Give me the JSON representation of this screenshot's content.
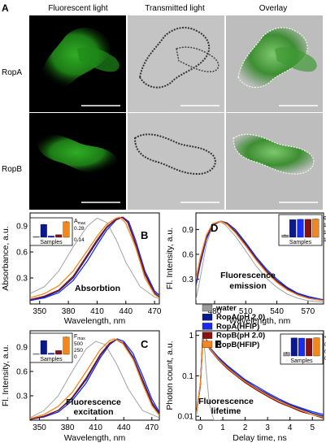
{
  "panel_a": {
    "letter": "A",
    "col_headers": [
      "Fluorescent light",
      "Transmitted light",
      "Overlay"
    ],
    "row_labels": [
      "RopA",
      "RopB"
    ]
  },
  "legend": {
    "entries": [
      {
        "label": "water",
        "color": "#9a9a9a"
      },
      {
        "label": "RopA(pH 2.0)",
        "color": "#0a1a8c"
      },
      {
        "label": "RopA(HFIP)",
        "color": "#1a2cf0"
      },
      {
        "label": "RopB(pH 2.0)",
        "color": "#8b1010"
      },
      {
        "label": "RopB(HFIP)",
        "color": "#f0881e"
      }
    ]
  },
  "chart_data": [
    {
      "panel": "B",
      "type": "line",
      "ylabel": "Absorbance, a.u.",
      "xlabel": "Wavelength, nm",
      "annotation": "Absorbtion",
      "xlim": [
        340,
        475
      ],
      "ylim": [
        0,
        1.05
      ],
      "xticks": [
        350,
        380,
        410,
        440,
        470
      ],
      "yticks": [
        0.3,
        0.6,
        0.9
      ],
      "series": [
        {
          "color": "#9a9a9a",
          "x": [
            340,
            355,
            370,
            385,
            400,
            410,
            420,
            430,
            440,
            455,
            470,
            475
          ],
          "y": [
            0.12,
            0.2,
            0.38,
            0.66,
            0.9,
            0.99,
            0.94,
            0.74,
            0.48,
            0.2,
            0.08,
            0.06
          ]
        },
        {
          "color": "#0a1a8c",
          "x": [
            340,
            355,
            370,
            385,
            400,
            410,
            420,
            430,
            436,
            442,
            450,
            460,
            470,
            475
          ],
          "y": [
            0.05,
            0.08,
            0.15,
            0.3,
            0.55,
            0.72,
            0.88,
            0.98,
            1.0,
            0.95,
            0.7,
            0.35,
            0.13,
            0.08
          ]
        },
        {
          "color": "#1a2cf0",
          "x": [
            340,
            355,
            370,
            385,
            400,
            410,
            420,
            430,
            437,
            443,
            450,
            460,
            470,
            475
          ],
          "y": [
            0.04,
            0.07,
            0.13,
            0.27,
            0.5,
            0.68,
            0.85,
            0.97,
            1.0,
            0.95,
            0.74,
            0.38,
            0.15,
            0.1
          ]
        },
        {
          "color": "#8b1010",
          "x": [
            340,
            355,
            370,
            385,
            400,
            410,
            420,
            430,
            436,
            442,
            450,
            460,
            470,
            475
          ],
          "y": [
            0.05,
            0.09,
            0.16,
            0.32,
            0.57,
            0.74,
            0.89,
            0.98,
            1.0,
            0.94,
            0.69,
            0.34,
            0.12,
            0.08
          ]
        },
        {
          "color": "#f0881e",
          "x": [
            340,
            355,
            370,
            385,
            400,
            410,
            420,
            430,
            434,
            440,
            450,
            460,
            470,
            475
          ],
          "y": [
            0.07,
            0.12,
            0.21,
            0.38,
            0.62,
            0.78,
            0.92,
            0.99,
            1.0,
            0.93,
            0.66,
            0.3,
            0.11,
            0.07
          ]
        }
      ],
      "inset": {
        "title": "A",
        "title_sub": "max",
        "yticks": [
          "0.28",
          "0.14"
        ],
        "ylim": [
          0,
          0.33
        ],
        "xlabel": "Samples",
        "bars": [
          0.015,
          0.25,
          0.025,
          0.05,
          0.3
        ],
        "errors": [
          0.003,
          0.01,
          0.004,
          0.005,
          0.012
        ]
      }
    },
    {
      "panel": "C",
      "type": "line",
      "ylabel": "Fl. Intensity, a.u.",
      "xlabel": "Wavelength, nm",
      "annotation": [
        "Fluorescence",
        "excitation"
      ],
      "xlim": [
        340,
        478
      ],
      "ylim": [
        0,
        1.1
      ],
      "xticks": [
        350,
        380,
        410,
        440,
        470
      ],
      "yticks": [
        0.3,
        0.6,
        0.9
      ],
      "series": [
        {
          "color": "#9a9a9a",
          "x": [
            340,
            355,
            370,
            385,
            400,
            410,
            420,
            432,
            445,
            460,
            478
          ],
          "y": [
            0.03,
            0.12,
            0.3,
            0.6,
            0.88,
            0.97,
            0.93,
            0.7,
            0.38,
            0.12,
            0.03
          ]
        },
        {
          "color": "#0a1a8c",
          "x": [
            340,
            355,
            370,
            385,
            400,
            415,
            425,
            432,
            440,
            450,
            460,
            470,
            478
          ],
          "y": [
            0.01,
            0.05,
            0.12,
            0.27,
            0.5,
            0.8,
            0.94,
            0.99,
            0.95,
            0.78,
            0.5,
            0.22,
            0.08
          ]
        },
        {
          "color": "#1a2cf0",
          "x": [
            340,
            355,
            370,
            385,
            400,
            415,
            425,
            433,
            440,
            450,
            460,
            470,
            478
          ],
          "y": [
            0.01,
            0.04,
            0.1,
            0.24,
            0.46,
            0.77,
            0.93,
            1.0,
            0.97,
            0.82,
            0.55,
            0.26,
            0.1
          ]
        },
        {
          "color": "#8b1010",
          "x": [
            340,
            355,
            370,
            385,
            400,
            415,
            425,
            432,
            440,
            450,
            460,
            470,
            478
          ],
          "y": [
            0.01,
            0.05,
            0.12,
            0.28,
            0.52,
            0.81,
            0.95,
            0.99,
            0.94,
            0.76,
            0.48,
            0.2,
            0.07
          ]
        },
        {
          "color": "#f0881e",
          "x": [
            340,
            355,
            370,
            385,
            400,
            415,
            425,
            430,
            438,
            450,
            460,
            470,
            478
          ],
          "y": [
            0.02,
            0.07,
            0.17,
            0.34,
            0.6,
            0.87,
            0.98,
            1.0,
            0.96,
            0.75,
            0.45,
            0.18,
            0.06
          ]
        }
      ],
      "inset": {
        "title": "F",
        "title_sub": "max",
        "yticks": [
          "500",
          "250",
          "0"
        ],
        "ylim": [
          0,
          650
        ],
        "xlabel": "Samples",
        "bars": [
          15,
          480,
          40,
          130,
          600
        ],
        "errors": [
          3,
          12,
          5,
          8,
          15
        ]
      }
    },
    {
      "panel": "D",
      "type": "line",
      "ylabel": "Fl. Intensity, a.u.",
      "xlabel": "Wavelength, nm",
      "annotation": [
        "Fluorescence",
        "emission"
      ],
      "xlim": [
        462,
        585
      ],
      "ylim": [
        0,
        1.1
      ],
      "xticks": [
        480,
        510,
        540,
        570
      ],
      "yticks": [
        0.3,
        0.6,
        0.9
      ],
      "series": [
        {
          "color": "#9a9a9a",
          "x": [
            462,
            466,
            472,
            478,
            484,
            490,
            500,
            510,
            520,
            530,
            540,
            550,
            560,
            570,
            585
          ],
          "y": [
            0.05,
            0.3,
            0.72,
            0.95,
            1.0,
            0.96,
            0.82,
            0.64,
            0.46,
            0.31,
            0.2,
            0.12,
            0.07,
            0.04,
            0.02
          ]
        },
        {
          "color": "#0a1a8c",
          "x": [
            462,
            466,
            472,
            478,
            486,
            492,
            500,
            510,
            520,
            530,
            540,
            550,
            560,
            570,
            585
          ],
          "y": [
            0.25,
            0.5,
            0.8,
            0.96,
            1.0,
            0.97,
            0.88,
            0.72,
            0.55,
            0.4,
            0.28,
            0.19,
            0.12,
            0.08,
            0.04
          ]
        },
        {
          "color": "#1a2cf0",
          "x": [
            462,
            466,
            472,
            478,
            486,
            492,
            500,
            510,
            520,
            530,
            540,
            550,
            560,
            570,
            585
          ],
          "y": [
            0.22,
            0.47,
            0.78,
            0.95,
            1.0,
            0.98,
            0.9,
            0.74,
            0.57,
            0.42,
            0.3,
            0.2,
            0.13,
            0.09,
            0.05
          ]
        },
        {
          "color": "#8b1010",
          "x": [
            462,
            466,
            472,
            478,
            486,
            492,
            500,
            510,
            520,
            530,
            540,
            550,
            560,
            570,
            585
          ],
          "y": [
            0.27,
            0.52,
            0.81,
            0.96,
            1.0,
            0.97,
            0.87,
            0.71,
            0.54,
            0.39,
            0.27,
            0.18,
            0.11,
            0.07,
            0.04
          ]
        },
        {
          "color": "#f0881e",
          "x": [
            462,
            466,
            472,
            478,
            486,
            492,
            500,
            510,
            520,
            530,
            540,
            550,
            560,
            570,
            585
          ],
          "y": [
            0.3,
            0.55,
            0.83,
            0.97,
            1.0,
            0.96,
            0.86,
            0.7,
            0.53,
            0.38,
            0.26,
            0.17,
            0.11,
            0.07,
            0.04
          ]
        }
      ],
      "inset": {
        "title": "q",
        "yticks": [
          "10⁻²",
          "10⁻³",
          "10⁻⁴"
        ],
        "log": true,
        "ylim": [
          5e-05,
          0.02
        ],
        "xlabel": "Samples",
        "bars": [
          0.0001,
          0.009,
          0.01,
          0.01,
          0.011
        ],
        "errors": [
          2e-05,
          0.001,
          0.001,
          0.001,
          0.001
        ]
      }
    },
    {
      "panel": "E",
      "type": "line",
      "ylabel": "Photon count, a.u.",
      "xlabel": "Delay time, ns",
      "annotation": [
        "Fluorescence",
        "lifetime"
      ],
      "xlim": [
        -0.2,
        5.5
      ],
      "ylim": [
        0.008,
        1.3
      ],
      "log_y": true,
      "xticks": [
        0,
        1,
        2,
        3,
        4,
        5
      ],
      "yticks": [
        "1",
        "0.1",
        "0.01"
      ],
      "ytick_values": [
        1,
        0.1,
        0.01
      ],
      "series": [
        {
          "color": "#9a9a9a",
          "x": [
            -0.2,
            0.0,
            0.08,
            0.15,
            0.25,
            0.4,
            0.6,
            0.9
          ],
          "y": [
            0.01,
            0.05,
            0.8,
            1.0,
            0.15,
            0.02,
            0.008,
            0.008
          ]
        },
        {
          "color": "#0a1a8c",
          "x": [
            -0.2,
            0.0,
            0.1,
            0.2,
            0.4,
            0.8,
            1.2,
            1.6,
            2.0,
            2.5,
            3.0,
            3.5,
            4.0,
            4.5,
            5.0,
            5.5
          ],
          "y": [
            0.01,
            0.06,
            0.75,
            1.0,
            0.5,
            0.27,
            0.17,
            0.11,
            0.075,
            0.05,
            0.035,
            0.025,
            0.019,
            0.015,
            0.012,
            0.01
          ]
        },
        {
          "color": "#1a2cf0",
          "x": [
            -0.2,
            0.0,
            0.1,
            0.2,
            0.4,
            0.8,
            1.2,
            1.6,
            2.0,
            2.5,
            3.0,
            3.5,
            4.0,
            4.5,
            5.0,
            5.5
          ],
          "y": [
            0.01,
            0.06,
            0.75,
            1.0,
            0.52,
            0.29,
            0.18,
            0.12,
            0.08,
            0.055,
            0.038,
            0.027,
            0.02,
            0.016,
            0.013,
            0.011
          ]
        },
        {
          "color": "#8b1010",
          "x": [
            -0.2,
            0.0,
            0.1,
            0.2,
            0.4,
            0.8,
            1.2,
            1.6,
            2.0,
            2.5,
            3.0,
            3.5,
            4.0,
            4.5,
            5.0,
            5.5
          ],
          "y": [
            0.01,
            0.06,
            0.75,
            1.0,
            0.47,
            0.25,
            0.15,
            0.1,
            0.068,
            0.045,
            0.031,
            0.022,
            0.017,
            0.013,
            0.011,
            0.009
          ]
        },
        {
          "color": "#f0881e",
          "x": [
            -0.2,
            0.0,
            0.1,
            0.2,
            0.4,
            0.8,
            1.2,
            1.6,
            2.0,
            2.5,
            3.0,
            3.5,
            4.0,
            4.5,
            5.0,
            5.5
          ],
          "y": [
            0.01,
            0.06,
            0.75,
            1.0,
            0.49,
            0.26,
            0.16,
            0.105,
            0.072,
            0.048,
            0.033,
            0.024,
            0.018,
            0.014,
            0.011,
            0.0095
          ]
        }
      ],
      "inset": {
        "title": "<τ>, ns",
        "yticks": [
          "0.1",
          "0.01",
          "0.001"
        ],
        "log": true,
        "ylim": [
          0.0007,
          0.3
        ],
        "xlabel": "Samples",
        "bars": [
          0.002,
          0.19,
          0.18,
          0.16,
          0.2
        ],
        "errors": [
          0.0005,
          0.01,
          0.01,
          0.01,
          0.01
        ]
      }
    }
  ]
}
